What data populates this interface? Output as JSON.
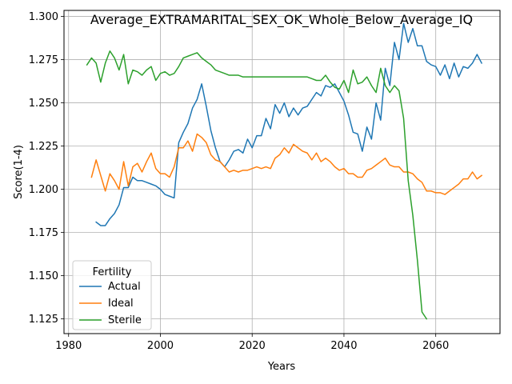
{
  "chart_data": {
    "type": "line",
    "title": "Average_EXTRAMARITAL_SEX_OK_Whole_Below_Average_IQ",
    "xlabel": "Years",
    "ylabel": "Score(1-4)",
    "xlim": [
      1979,
      2074
    ],
    "ylim": [
      1.1165,
      1.3035
    ],
    "xticks": [
      1980,
      2000,
      2020,
      2040,
      2060
    ],
    "yticks": [
      1.125,
      1.15,
      1.175,
      1.2,
      1.225,
      1.25,
      1.275,
      1.3
    ],
    "ytick_labels": [
      "1.125",
      "1.150",
      "1.175",
      "1.200",
      "1.225",
      "1.250",
      "1.275",
      "1.300"
    ],
    "xtick_labels": [
      "1980",
      "2000",
      "2020",
      "2040",
      "2060"
    ],
    "grid": true,
    "legend": {
      "title": "Fertility",
      "location": "lower-left"
    },
    "series": [
      {
        "name": "Actual",
        "color": "#1f77b4",
        "x": [
          1986,
          1987,
          1988,
          1989,
          1990,
          1991,
          1992,
          1993,
          1994,
          1995,
          1996,
          1997,
          1998,
          1999,
          2000,
          2001,
          2002,
          2003,
          2004,
          2005,
          2006,
          2007,
          2008,
          2009,
          2010,
          2011,
          2012,
          2013,
          2014,
          2015,
          2016,
          2017,
          2018,
          2019,
          2020,
          2021,
          2022,
          2023,
          2024,
          2025,
          2026,
          2027,
          2028,
          2029,
          2030,
          2031,
          2032,
          2033,
          2034,
          2035,
          2036,
          2037,
          2038,
          2039,
          2040,
          2041,
          2042,
          2043,
          2044,
          2045,
          2046,
          2047,
          2048,
          2049,
          2050,
          2051,
          2052,
          2053,
          2054,
          2055,
          2056,
          2057,
          2058,
          2059,
          2060,
          2061,
          2062,
          2063,
          2064,
          2065,
          2066,
          2067,
          2068,
          2069,
          2070
        ],
        "values": [
          1.181,
          1.179,
          1.179,
          1.183,
          1.186,
          1.191,
          1.201,
          1.201,
          1.207,
          1.205,
          1.205,
          1.204,
          1.203,
          1.202,
          1.2,
          1.197,
          1.196,
          1.195,
          1.227,
          1.233,
          1.238,
          1.247,
          1.252,
          1.261,
          1.248,
          1.234,
          1.224,
          1.216,
          1.213,
          1.217,
          1.222,
          1.223,
          1.221,
          1.229,
          1.224,
          1.231,
          1.231,
          1.241,
          1.235,
          1.249,
          1.244,
          1.25,
          1.242,
          1.247,
          1.243,
          1.247,
          1.248,
          1.252,
          1.256,
          1.254,
          1.26,
          1.259,
          1.261,
          1.256,
          1.251,
          1.243,
          1.233,
          1.232,
          1.222,
          1.236,
          1.229,
          1.25,
          1.24,
          1.27,
          1.26,
          1.285,
          1.275,
          1.296,
          1.285,
          1.293,
          1.283,
          1.283,
          1.274,
          1.272,
          1.271,
          1.266,
          1.272,
          1.264,
          1.273,
          1.265,
          1.271,
          1.27,
          1.273,
          1.278,
          1.273
        ]
      },
      {
        "name": "Ideal",
        "color": "#ff7f0e",
        "x": [
          1985,
          1986,
          1987,
          1988,
          1989,
          1990,
          1991,
          1992,
          1993,
          1994,
          1995,
          1996,
          1997,
          1998,
          1999,
          2000,
          2001,
          2002,
          2003,
          2004,
          2005,
          2006,
          2007,
          2008,
          2009,
          2010,
          2011,
          2012,
          2013,
          2014,
          2015,
          2016,
          2017,
          2018,
          2019,
          2020,
          2021,
          2022,
          2023,
          2024,
          2025,
          2026,
          2027,
          2028,
          2029,
          2030,
          2031,
          2032,
          2033,
          2034,
          2035,
          2036,
          2037,
          2038,
          2039,
          2040,
          2041,
          2042,
          2043,
          2044,
          2045,
          2046,
          2047,
          2048,
          2049,
          2050,
          2051,
          2052,
          2053,
          2054,
          2055,
          2056,
          2057,
          2058,
          2059,
          2060,
          2061,
          2062,
          2063,
          2064,
          2065,
          2066,
          2067,
          2068,
          2069,
          2070
        ],
        "values": [
          1.207,
          1.217,
          1.208,
          1.199,
          1.209,
          1.205,
          1.2,
          1.216,
          1.202,
          1.213,
          1.215,
          1.21,
          1.216,
          1.221,
          1.212,
          1.209,
          1.209,
          1.207,
          1.213,
          1.224,
          1.224,
          1.228,
          1.222,
          1.232,
          1.23,
          1.227,
          1.22,
          1.217,
          1.216,
          1.213,
          1.21,
          1.211,
          1.21,
          1.211,
          1.211,
          1.212,
          1.213,
          1.212,
          1.213,
          1.212,
          1.218,
          1.22,
          1.224,
          1.221,
          1.226,
          1.224,
          1.222,
          1.221,
          1.217,
          1.221,
          1.216,
          1.218,
          1.216,
          1.213,
          1.211,
          1.212,
          1.209,
          1.209,
          1.207,
          1.207,
          1.211,
          1.212,
          1.214,
          1.216,
          1.218,
          1.214,
          1.213,
          1.213,
          1.21,
          1.21,
          1.209,
          1.206,
          1.204,
          1.199,
          1.199,
          1.198,
          1.198,
          1.197,
          1.199,
          1.201,
          1.203,
          1.206,
          1.206,
          1.21,
          1.206,
          1.208
        ]
      },
      {
        "name": "Sterile",
        "color": "#2ca02c",
        "x": [
          1984,
          1985,
          1986,
          1987,
          1988,
          1989,
          1990,
          1991,
          1992,
          1993,
          1994,
          1995,
          1996,
          1997,
          1998,
          1999,
          2000,
          2001,
          2002,
          2003,
          2004,
          2005,
          2006,
          2007,
          2008,
          2009,
          2010,
          2011,
          2012,
          2013,
          2014,
          2015,
          2016,
          2017,
          2018,
          2019,
          2020,
          2021,
          2022,
          2023,
          2024,
          2025,
          2026,
          2027,
          2028,
          2029,
          2030,
          2031,
          2032,
          2033,
          2034,
          2035,
          2036,
          2037,
          2038,
          2039,
          2040,
          2041,
          2042,
          2043,
          2044,
          2045,
          2046,
          2047,
          2048,
          2049,
          2050,
          2051,
          2052,
          2053,
          2054,
          2055,
          2056,
          2057,
          2058
        ],
        "values": [
          1.272,
          1.276,
          1.273,
          1.262,
          1.273,
          1.28,
          1.276,
          1.269,
          1.278,
          1.261,
          1.269,
          1.268,
          1.266,
          1.269,
          1.271,
          1.263,
          1.267,
          1.268,
          1.266,
          1.267,
          1.271,
          1.276,
          1.277,
          1.278,
          1.279,
          1.276,
          1.274,
          1.272,
          1.269,
          1.268,
          1.267,
          1.266,
          1.266,
          1.266,
          1.265,
          1.265,
          1.265,
          1.265,
          1.265,
          1.265,
          1.265,
          1.265,
          1.265,
          1.265,
          1.265,
          1.265,
          1.265,
          1.265,
          1.265,
          1.264,
          1.263,
          1.263,
          1.266,
          1.262,
          1.259,
          1.258,
          1.263,
          1.256,
          1.269,
          1.261,
          1.262,
          1.265,
          1.26,
          1.256,
          1.27,
          1.26,
          1.256,
          1.26,
          1.257,
          1.241,
          1.205,
          1.185,
          1.159,
          1.129,
          1.125
        ]
      }
    ]
  }
}
